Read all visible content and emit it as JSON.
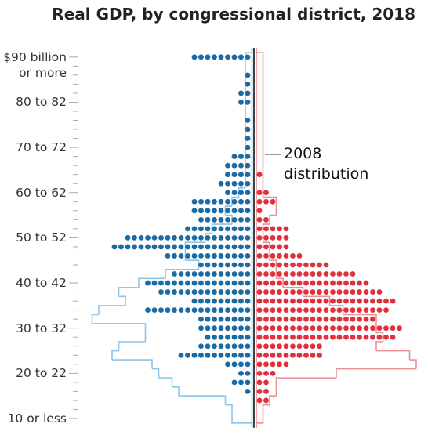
{
  "chart_data": {
    "type": "dot-butterfly",
    "title": "Real GDP, by congressional district, 2018",
    "annotation": "2008\ndistribution",
    "categories": [
      "10 or less",
      null,
      null,
      null,
      null,
      "20 to 22",
      null,
      null,
      null,
      null,
      "30 to 32",
      null,
      null,
      null,
      null,
      "40 to 42",
      null,
      null,
      null,
      null,
      "50 to 52",
      null,
      null,
      null,
      null,
      "60 to 62",
      null,
      null,
      null,
      null,
      "70 to 72",
      null,
      null,
      null,
      null,
      "80 to 82",
      null,
      null,
      null,
      null,
      "$90 billion\nor more"
    ],
    "series": [
      {
        "color": "#1a6aa5",
        "outline_color": "#8cc4ea",
        "values": [
          0,
          0,
          0,
          1,
          3,
          2,
          4,
          11,
          8,
          7,
          8,
          8,
          16,
          9,
          14,
          16,
          12,
          8,
          13,
          21,
          19,
          10,
          8,
          9,
          9,
          4,
          5,
          4,
          4,
          3,
          1,
          1,
          1,
          1,
          0,
          2,
          2,
          1,
          1,
          0,
          9
        ],
        "values_2008": [
          3,
          3,
          4,
          11,
          12,
          14,
          15,
          21,
          20,
          16,
          16,
          24,
          23,
          19,
          20,
          17,
          13,
          8,
          10,
          10,
          7,
          6,
          3,
          4,
          3,
          2,
          1,
          1,
          1,
          1,
          1,
          1,
          1,
          1,
          1,
          1,
          1,
          1,
          1,
          1,
          1
        ]
      },
      {
        "color": "#e0303e",
        "outline_color": "#ec8f94",
        "values": [
          0,
          0,
          2,
          2,
          2,
          3,
          5,
          10,
          10,
          21,
          22,
          18,
          20,
          21,
          19,
          17,
          15,
          11,
          7,
          5,
          5,
          5,
          2,
          1,
          3,
          2,
          0,
          1,
          0,
          0,
          0,
          0,
          0,
          0,
          0,
          0,
          0,
          0,
          0,
          0,
          0
        ],
        "values_2008": [
          1,
          1,
          2,
          3,
          3,
          12,
          24,
          23,
          18,
          19,
          18,
          18,
          13,
          11,
          7,
          4,
          3,
          3,
          2,
          2,
          1,
          1,
          2,
          3,
          3,
          1,
          1,
          1,
          1,
          1,
          1,
          1,
          1,
          1,
          1,
          1,
          1,
          1,
          1,
          1,
          1
        ]
      }
    ]
  }
}
